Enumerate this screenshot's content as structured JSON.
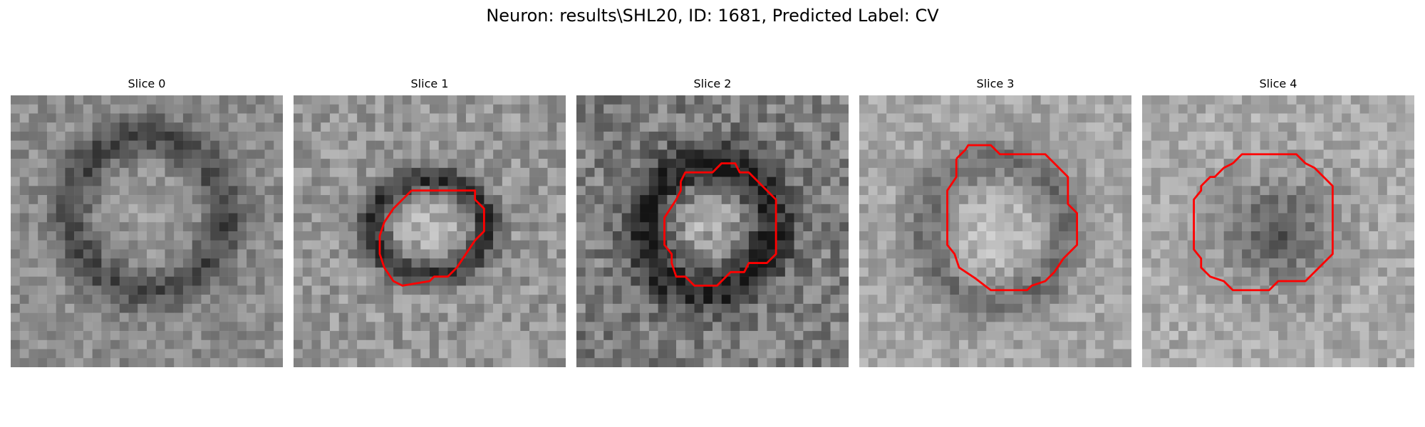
{
  "figure": {
    "title": "Neuron: results\\SHL20, ID: 1681, Predicted Label: CV"
  },
  "colors": {
    "contour": "#ff0000",
    "background": "#ffffff"
  },
  "slices": [
    {
      "title": "Slice 0",
      "has_contour": false
    },
    {
      "title": "Slice 1",
      "has_contour": true
    },
    {
      "title": "Slice 2",
      "has_contour": true
    },
    {
      "title": "Slice 3",
      "has_contour": true
    },
    {
      "title": "Slice 4",
      "has_contour": true
    }
  ]
}
